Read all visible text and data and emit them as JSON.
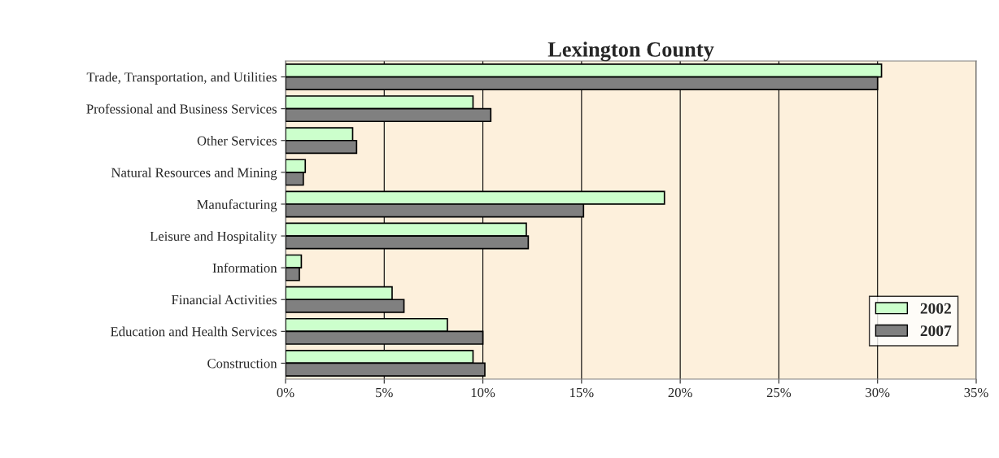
{
  "chart_data": {
    "type": "bar",
    "orientation": "horizontal",
    "title": "Lexington County",
    "categories": [
      "Trade, Transportation, and Utilities",
      "Professional and Business Services",
      "Other Services",
      "Natural Resources and Mining",
      "Manufacturing",
      "Leisure and Hospitality",
      "Information",
      "Financial Activities",
      "Education and Health Services",
      "Construction"
    ],
    "series": [
      {
        "name": "2002",
        "color": "#ccffcc",
        "values": [
          30.2,
          9.5,
          3.4,
          1.0,
          19.2,
          12.2,
          0.8,
          5.4,
          8.2,
          9.5
        ]
      },
      {
        "name": "2007",
        "color": "#808080",
        "values": [
          30.0,
          10.4,
          3.6,
          0.9,
          15.1,
          12.3,
          0.7,
          6.0,
          10.0,
          10.1
        ]
      }
    ],
    "xlim": [
      0,
      35
    ],
    "xticks": [
      {
        "value": 0,
        "label": "0%"
      },
      {
        "value": 5,
        "label": "5%"
      },
      {
        "value": 10,
        "label": "10%"
      },
      {
        "value": 15,
        "label": "15%"
      },
      {
        "value": 20,
        "label": "20%"
      },
      {
        "value": 25,
        "label": "25%"
      },
      {
        "value": 30,
        "label": "30%"
      },
      {
        "value": 35,
        "label": "35%"
      }
    ],
    "grid": "x",
    "legend": "bottom right"
  }
}
